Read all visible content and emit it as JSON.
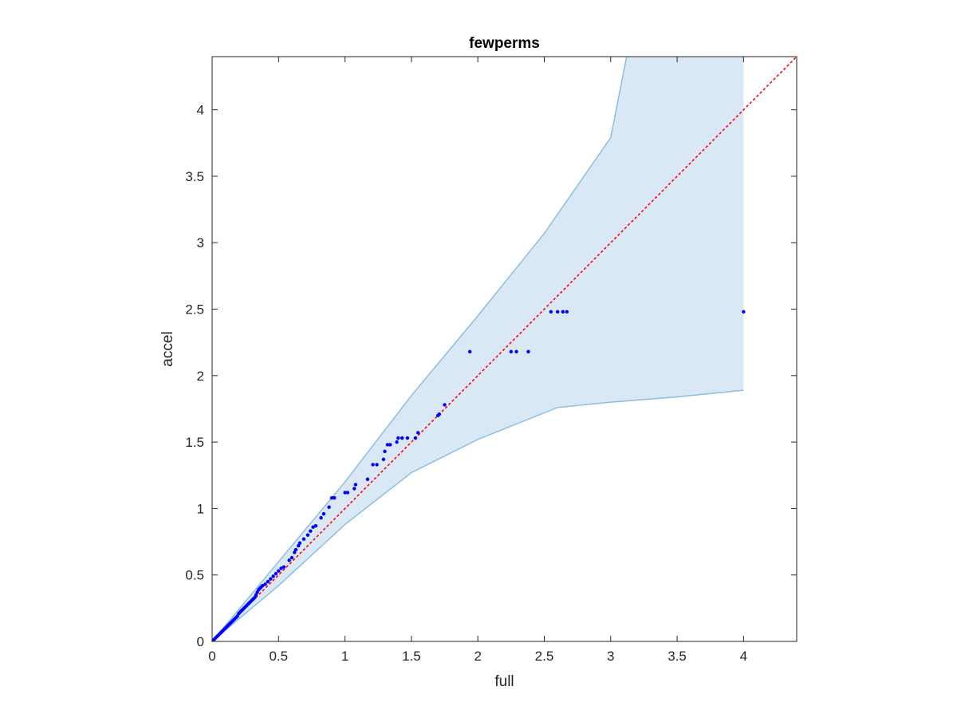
{
  "chart_data": {
    "type": "scatter",
    "title": "fewperms",
    "xlabel": "full",
    "ylabel": "accel",
    "xlim": [
      0,
      4.4
    ],
    "ylim": [
      0,
      4.4
    ],
    "xticks": [
      0,
      0.5,
      1,
      1.5,
      2,
      2.5,
      3,
      3.5,
      4
    ],
    "xtick_labels": [
      "0",
      "0.5",
      "1",
      "1.5",
      "2",
      "2.5",
      "3",
      "3.5",
      "4"
    ],
    "yticks": [
      0,
      0.5,
      1,
      1.5,
      2,
      2.5,
      3,
      3.5,
      4
    ],
    "ytick_labels": [
      "0",
      "0.5",
      "1",
      "1.5",
      "2",
      "2.5",
      "3",
      "3.5",
      "4"
    ],
    "grid": false,
    "band": {
      "color": "#d9e8f4",
      "edge_color": "#8bbfe0",
      "upper": [
        [
          0,
          0
        ],
        [
          0.5,
          0.6
        ],
        [
          1,
          1.2
        ],
        [
          1.5,
          1.85
        ],
        [
          2,
          2.45
        ],
        [
          2.5,
          3.07
        ],
        [
          3,
          3.79
        ],
        [
          3.12,
          4.4
        ]
      ],
      "lower": [
        [
          0,
          0
        ],
        [
          0.5,
          0.42
        ],
        [
          1,
          0.88
        ],
        [
          1.5,
          1.27
        ],
        [
          2,
          1.52
        ],
        [
          2.3,
          1.64
        ],
        [
          2.6,
          1.76
        ],
        [
          3,
          1.8
        ],
        [
          3.5,
          1.84
        ],
        [
          4,
          1.89
        ]
      ],
      "right_edge": [
        [
          4,
          1.89
        ],
        [
          4,
          4.4
        ]
      ]
    },
    "reference_line": {
      "type": "identity",
      "color": "#ff0000",
      "style": "dotted",
      "from": [
        0,
        0
      ],
      "to": [
        4.4,
        4.4
      ]
    },
    "series": [
      {
        "color": "#0000ff",
        "points": [
          [
            0.01,
            0.01
          ],
          [
            0.02,
            0.02
          ],
          [
            0.03,
            0.03
          ],
          [
            0.04,
            0.04
          ],
          [
            0.05,
            0.05
          ],
          [
            0.06,
            0.06
          ],
          [
            0.07,
            0.07
          ],
          [
            0.08,
            0.08
          ],
          [
            0.09,
            0.09
          ],
          [
            0.1,
            0.1
          ],
          [
            0.11,
            0.11
          ],
          [
            0.12,
            0.12
          ],
          [
            0.13,
            0.13
          ],
          [
            0.14,
            0.14
          ],
          [
            0.15,
            0.15
          ],
          [
            0.16,
            0.16
          ],
          [
            0.17,
            0.17
          ],
          [
            0.18,
            0.18
          ],
          [
            0.19,
            0.19
          ],
          [
            0.2,
            0.21
          ],
          [
            0.21,
            0.22
          ],
          [
            0.22,
            0.23
          ],
          [
            0.23,
            0.24
          ],
          [
            0.24,
            0.25
          ],
          [
            0.25,
            0.26
          ],
          [
            0.26,
            0.27
          ],
          [
            0.27,
            0.28
          ],
          [
            0.28,
            0.29
          ],
          [
            0.29,
            0.3
          ],
          [
            0.3,
            0.31
          ],
          [
            0.31,
            0.32
          ],
          [
            0.32,
            0.33
          ],
          [
            0.33,
            0.35
          ],
          [
            0.34,
            0.37
          ],
          [
            0.35,
            0.39
          ],
          [
            0.36,
            0.4
          ],
          [
            0.37,
            0.41
          ],
          [
            0.38,
            0.42
          ],
          [
            0.4,
            0.43
          ],
          [
            0.42,
            0.45
          ],
          [
            0.44,
            0.47
          ],
          [
            0.46,
            0.49
          ],
          [
            0.48,
            0.51
          ],
          [
            0.5,
            0.53
          ],
          [
            0.52,
            0.55
          ],
          [
            0.54,
            0.56
          ],
          [
            0.58,
            0.61
          ],
          [
            0.6,
            0.63
          ],
          [
            0.62,
            0.67
          ],
          [
            0.63,
            0.69
          ],
          [
            0.65,
            0.72
          ],
          [
            0.66,
            0.74
          ],
          [
            0.69,
            0.77
          ],
          [
            0.72,
            0.8
          ],
          [
            0.74,
            0.83
          ],
          [
            0.76,
            0.86
          ],
          [
            0.78,
            0.87
          ],
          [
            0.82,
            0.93
          ],
          [
            0.84,
            0.96
          ],
          [
            0.88,
            1.01
          ],
          [
            0.9,
            1.08
          ],
          [
            0.92,
            1.08
          ],
          [
            1.0,
            1.12
          ],
          [
            1.02,
            1.12
          ],
          [
            1.07,
            1.15
          ],
          [
            1.08,
            1.18
          ],
          [
            1.17,
            1.22
          ],
          [
            1.21,
            1.33
          ],
          [
            1.24,
            1.33
          ],
          [
            1.29,
            1.37
          ],
          [
            1.3,
            1.43
          ],
          [
            1.32,
            1.48
          ],
          [
            1.34,
            1.48
          ],
          [
            1.39,
            1.5
          ],
          [
            1.4,
            1.53
          ],
          [
            1.43,
            1.53
          ],
          [
            1.47,
            1.53
          ],
          [
            1.53,
            1.53
          ],
          [
            1.55,
            1.57
          ],
          [
            1.7,
            1.7
          ],
          [
            1.71,
            1.71
          ],
          [
            1.75,
            1.78
          ],
          [
            1.94,
            2.18
          ],
          [
            2.25,
            2.18
          ],
          [
            2.29,
            2.18
          ],
          [
            2.38,
            2.18
          ],
          [
            2.55,
            2.48
          ],
          [
            2.6,
            2.48
          ],
          [
            2.64,
            2.48
          ],
          [
            2.67,
            2.48
          ],
          [
            4.0,
            2.48
          ]
        ]
      }
    ]
  }
}
